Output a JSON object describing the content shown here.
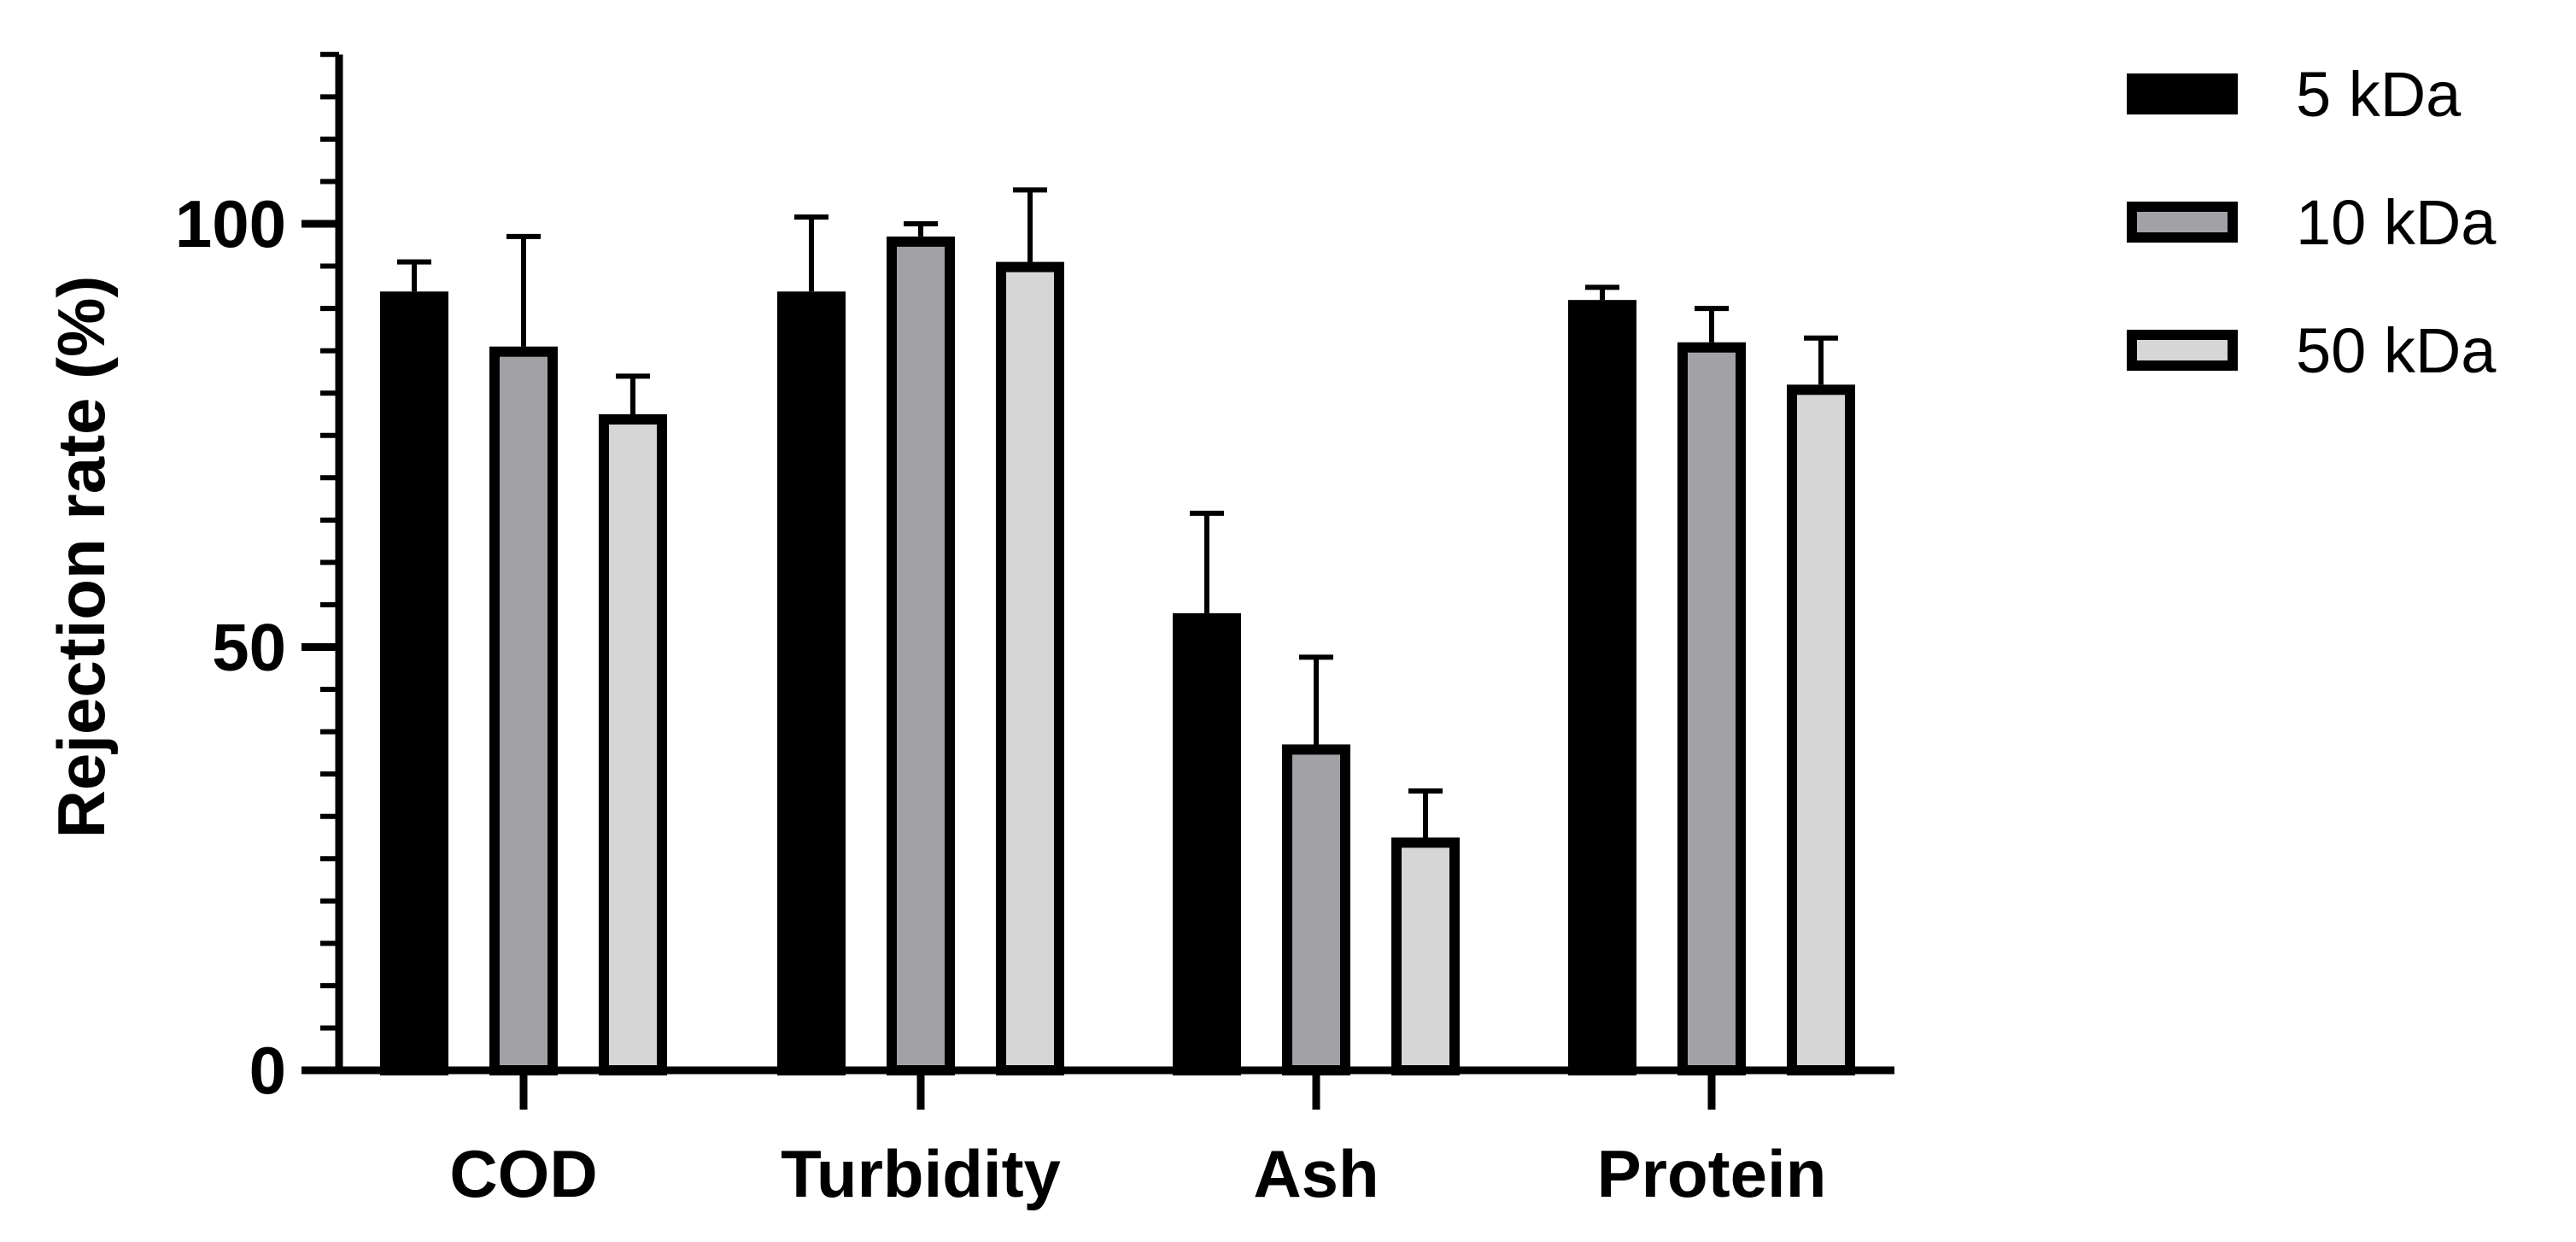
{
  "chart_data": {
    "type": "bar",
    "title": "",
    "xlabel": "",
    "ylabel": "Rejection rate (%)",
    "ylim": [
      0,
      120
    ],
    "y_ticks": [
      {
        "value": 0,
        "label": "0"
      },
      {
        "value": 50,
        "label": "50"
      },
      {
        "value": 100,
        "label": "100"
      }
    ],
    "y_minor_step": 5,
    "grid": false,
    "legend_position": "top-right",
    "categories": [
      "COD",
      "Turbidity",
      "Ash",
      "Protein"
    ],
    "series": [
      {
        "name": "5 kDa",
        "color": "#000000",
        "values": [
          92,
          92,
          54,
          91
        ],
        "errors": [
          3.5,
          8.8,
          11.8,
          1.5
        ]
      },
      {
        "name": "10 kDa",
        "color": "#a2a2a6",
        "values": [
          85.5,
          98.5,
          38.5,
          86
        ],
        "errors": [
          13,
          1.5,
          10.3,
          4
        ]
      },
      {
        "name": "50 kDa",
        "color": "#d6d6d6",
        "values": [
          77.5,
          95.5,
          27.5,
          81
        ],
        "errors": [
          4.5,
          8.5,
          5.5,
          5.5
        ]
      }
    ]
  }
}
